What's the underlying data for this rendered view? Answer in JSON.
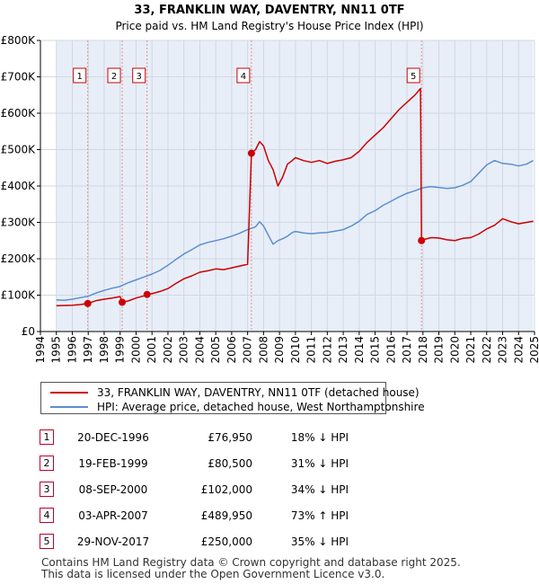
{
  "chart_data": {
    "type": "line",
    "title": "33, FRANKLIN WAY, DAVENTRY, NN11 0TF",
    "subtitle": "Price paid vs. HM Land Registry's House Price Index (HPI)",
    "xlim": [
      1994,
      2025
    ],
    "ylim": [
      0,
      800000
    ],
    "yticks": [
      0,
      100000,
      200000,
      300000,
      400000,
      500000,
      600000,
      700000,
      800000
    ],
    "ytick_labels": [
      "£0",
      "£100K",
      "£200K",
      "£300K",
      "£400K",
      "£500K",
      "£600K",
      "£700K",
      "£800K"
    ],
    "xticks": [
      1994,
      1995,
      1996,
      1997,
      1998,
      1999,
      2000,
      2001,
      2002,
      2003,
      2004,
      2005,
      2006,
      2007,
      2008,
      2009,
      2010,
      2011,
      2012,
      2013,
      2014,
      2015,
      2016,
      2017,
      2018,
      2019,
      2020,
      2021,
      2022,
      2023,
      2024,
      2025
    ],
    "xtick_labels": [
      "1994",
      "1995",
      "1996",
      "1997",
      "1998",
      "1999",
      "2000",
      "2001",
      "2002",
      "2003",
      "2004",
      "2005",
      "2006",
      "2007",
      "2008",
      "2009",
      "2010",
      "2011",
      "2012",
      "2013",
      "2014",
      "2015",
      "2016",
      "2017",
      "2018",
      "2019",
      "2020",
      "2021",
      "2022",
      "2023",
      "2024",
      "2025"
    ],
    "grid": true,
    "hpi_start": 1995.0,
    "hpi_end": 2024.92,
    "series": [
      {
        "name": "33, FRANKLIN WAY, DAVENTRY, NN11 0TF (detached house)",
        "color": "#cc0000",
        "x": [
          1995.0,
          1995.5,
          1996.0,
          1996.5,
          1996.97,
          1997.5,
          1998.0,
          1998.5,
          1999.0,
          1999.13,
          1999.5,
          2000.0,
          2000.5,
          2000.69,
          2001.0,
          2001.5,
          2002.0,
          2002.5,
          2003.0,
          2003.5,
          2004.0,
          2004.5,
          2005.0,
          2005.5,
          2006.0,
          2006.5,
          2007.0,
          2007.24,
          2007.5,
          2007.75,
          2008.0,
          2008.3,
          2008.6,
          2008.9,
          2009.2,
          2009.5,
          2009.8,
          2010.0,
          2010.5,
          2011.0,
          2011.5,
          2012.0,
          2012.5,
          2013.0,
          2013.5,
          2014.0,
          2014.5,
          2015.0,
          2015.5,
          2016.0,
          2016.5,
          2017.0,
          2017.5,
          2017.85,
          2017.91,
          2018.0,
          2018.5,
          2019.0,
          2019.5,
          2020.0,
          2020.5,
          2021.0,
          2021.5,
          2022.0,
          2022.5,
          2023.0,
          2023.5,
          2024.0,
          2024.5,
          2024.92
        ],
        "values": [
          71000,
          71500,
          72000,
          74000,
          76950,
          85000,
          89000,
          92000,
          96000,
          80500,
          84000,
          92000,
          98000,
          102000,
          104000,
          110000,
          118000,
          132000,
          145000,
          153000,
          163000,
          167000,
          172000,
          170000,
          175000,
          180000,
          185000,
          489950,
          500000,
          522000,
          510000,
          470000,
          445000,
          400000,
          425000,
          460000,
          470000,
          478000,
          470000,
          465000,
          470000,
          462000,
          468000,
          472000,
          478000,
          495000,
          520000,
          540000,
          560000,
          585000,
          610000,
          630000,
          650000,
          668000,
          250000,
          252000,
          258000,
          257000,
          252000,
          250000,
          256000,
          258000,
          268000,
          282000,
          292000,
          310000,
          302000,
          296000,
          300000,
          303000
        ]
      },
      {
        "name": "HPI: Average price, detached house, West Northamptonshire",
        "color": "#5b8fcf",
        "x": [
          1995.0,
          1995.5,
          1996.0,
          1996.5,
          1997.0,
          1997.5,
          1998.0,
          1998.5,
          1999.0,
          1999.5,
          2000.0,
          2000.5,
          2001.0,
          2001.5,
          2002.0,
          2002.5,
          2003.0,
          2003.5,
          2004.0,
          2004.5,
          2005.0,
          2005.5,
          2006.0,
          2006.5,
          2007.0,
          2007.5,
          2007.75,
          2008.0,
          2008.3,
          2008.6,
          2008.9,
          2009.2,
          2009.5,
          2009.8,
          2010.0,
          2010.5,
          2011.0,
          2011.5,
          2012.0,
          2012.5,
          2013.0,
          2013.5,
          2014.0,
          2014.5,
          2015.0,
          2015.5,
          2016.0,
          2016.5,
          2017.0,
          2017.5,
          2018.0,
          2018.5,
          2019.0,
          2019.5,
          2020.0,
          2020.5,
          2021.0,
          2021.5,
          2022.0,
          2022.5,
          2023.0,
          2023.5,
          2024.0,
          2024.5,
          2024.92
        ],
        "values": [
          87000,
          86000,
          89000,
          93000,
          97000,
          106000,
          113000,
          119000,
          124000,
          134000,
          142000,
          150000,
          158000,
          168000,
          182000,
          198000,
          213000,
          225000,
          238000,
          245000,
          250000,
          255000,
          262000,
          270000,
          280000,
          288000,
          302000,
          290000,
          265000,
          240000,
          250000,
          255000,
          262000,
          272000,
          275000,
          271000,
          269000,
          271000,
          272000,
          276000,
          280000,
          290000,
          303000,
          322000,
          332000,
          347000,
          358000,
          370000,
          380000,
          387000,
          395000,
          398000,
          396000,
          393000,
          395000,
          402000,
          412000,
          435000,
          458000,
          470000,
          462000,
          460000,
          455000,
          460000,
          470000
        ]
      }
    ],
    "sales": [
      {
        "label": "1",
        "x": 1996.97,
        "value": 76950
      },
      {
        "label": "2",
        "x": 1999.13,
        "value": 80500
      },
      {
        "label": "3",
        "x": 2000.69,
        "value": 102000
      },
      {
        "label": "4",
        "x": 2007.24,
        "value": 489950
      },
      {
        "label": "5",
        "x": 2017.91,
        "value": 250000
      }
    ]
  },
  "legend": {
    "property_label": "33, FRANKLIN WAY, DAVENTRY, NN11 0TF (detached house)",
    "hpi_label": "HPI: Average price, detached house, West Northamptonshire",
    "property_color": "#cc0000",
    "hpi_color": "#5b8fcf"
  },
  "sales_table": [
    {
      "num": "1",
      "date": "20-DEC-1996",
      "price": "£76,950",
      "hpi": "18% ↓ HPI"
    },
    {
      "num": "2",
      "date": "19-FEB-1999",
      "price": "£80,500",
      "hpi": "31% ↓ HPI"
    },
    {
      "num": "3",
      "date": "08-SEP-2000",
      "price": "£102,000",
      "hpi": "34% ↓ HPI"
    },
    {
      "num": "4",
      "date": "03-APR-2007",
      "price": "£489,950",
      "hpi": "73% ↑ HPI"
    },
    {
      "num": "5",
      "date": "29-NOV-2017",
      "price": "£250,000",
      "hpi": "35% ↓ HPI"
    }
  ],
  "footer": {
    "line1": "Contains HM Land Registry data © Crown copyright and database right 2025.",
    "line2": "This data is licensed under the Open Government Licence v3.0."
  },
  "colors": {
    "shade": "#e8eef8",
    "grid": "#d0d8e4",
    "sale_marker": "#cc0000",
    "vline": "#e09090"
  }
}
